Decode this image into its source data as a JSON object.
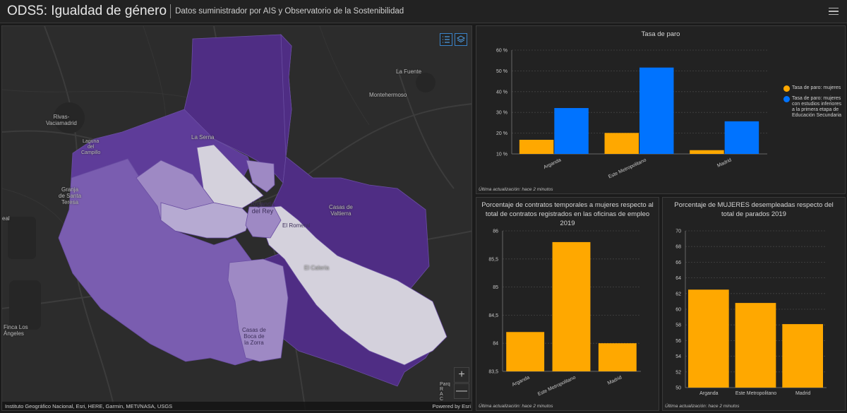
{
  "header": {
    "title": "ODS5: Igualdad de género",
    "subtitle": "Datos suministrador por AIS y Observatorio de la Sostenibilidad"
  },
  "icons": {
    "menu": "hamburger-menu-icon",
    "legend": "legend-list-icon",
    "layers": "layers-icon",
    "zoom_in": "plus-icon",
    "zoom_out": "minus-icon"
  },
  "map": {
    "labels": {
      "la_fuente": "La Fuente",
      "montehermoso": "Montehermoso",
      "rivas": "Rivas-\nVaciamadrid",
      "laguna": "Laguna\ndel\nCampillo",
      "la_serna": "La Serna",
      "granja": "Granja\nde Santa\nTeresa",
      "arganda": "Arganda\ndel Rey",
      "el_romeral": "El Romeral",
      "casas_valtierra": "Casas de\nValtierra",
      "el_caleria": "El Calería",
      "casas_boca": "Casas de\nBoca de\nla Zorra",
      "finca": "Finca Los\nÁngeles",
      "real": "eal",
      "edge": "Parq\nR\nA\nC"
    },
    "attribution": "Instituto Geográfico Nacional, Esri, HERE, Garmin, METI/NASA, USGS",
    "powered_by": "Powered by Esri",
    "zoom_in": "+",
    "zoom_out": "—",
    "colors": {
      "darkest": "#4f2d84",
      "dark": "#5e3c99",
      "mid": "#7a5db0",
      "light": "#9e89c4",
      "lighter": "#b6aad2",
      "lightest": "#d4d1dc"
    }
  },
  "chart_data": [
    {
      "type": "bar",
      "title": "Tasa de paro",
      "categories": [
        "Arganda",
        "Este Metropolitano",
        "Madrid"
      ],
      "series": [
        {
          "name": "Tasa de paro: mujeres",
          "values": [
            16.8,
            20.1,
            11.8
          ],
          "color": "#ffa800"
        },
        {
          "name": "Tasa de paro: mujeres con estudios inferiores a la primera etapa de Educación Secundaria",
          "values": [
            32.1,
            51.6,
            25.7
          ],
          "color": "#0073ff"
        }
      ],
      "yticks": [
        "10 %",
        "20 %",
        "30 %",
        "40 %",
        "50 %",
        "60 %"
      ],
      "ylim": [
        10,
        60
      ],
      "grid": true,
      "legend": "right",
      "footer": "Última actualización: hace 2 minutos"
    },
    {
      "type": "bar",
      "title": "Porcentaje de contratos temporales a mujeres respecto al total de contratos registrados en las oficinas de empleo 2019",
      "categories": [
        "Arganda",
        "Este Metropolitano",
        "Madrid"
      ],
      "values": [
        84.2,
        85.8,
        84.0
      ],
      "color": "#ffa800",
      "yticks": [
        "83,5",
        "84",
        "84,5",
        "85",
        "85,5",
        "86"
      ],
      "ylim": [
        83.5,
        86
      ],
      "grid": true,
      "footer": "Última actualización: hace 2 minutos"
    },
    {
      "type": "bar",
      "title": "Porcentaje de MUJERES desempleadas respecto del total de parados 2019",
      "categories": [
        "Arganda",
        "Este Metropolitano",
        "Madrid"
      ],
      "values": [
        62.5,
        60.8,
        58.1
      ],
      "color": "#ffa800",
      "yticks": [
        "50",
        "52",
        "54",
        "56",
        "58",
        "60",
        "62",
        "64",
        "66",
        "68",
        "70"
      ],
      "ylim": [
        50,
        70
      ],
      "grid": true,
      "footer": "Última actualización: hace 2 minutos"
    }
  ]
}
